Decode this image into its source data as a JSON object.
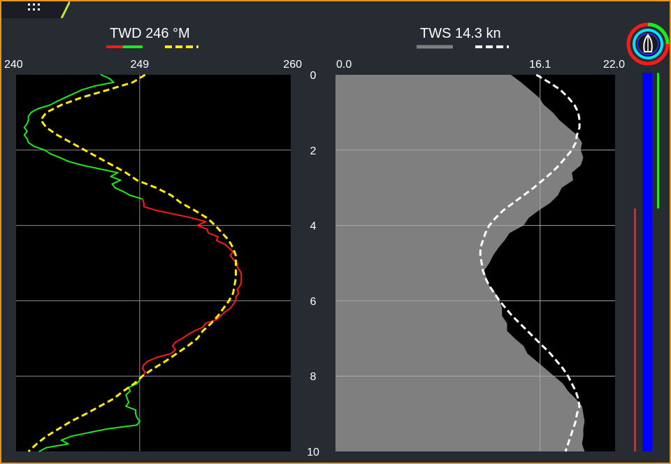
{
  "title_twd": "TWD 246 °M",
  "title_tws": "TWS 14.3 kn",
  "colors": {
    "frame": "#e8951c",
    "background": "#272c33",
    "plot_background": "#000000",
    "twd_port": "#ff1a1a",
    "twd_starboard": "#1ee81e",
    "twd_average": "#ffee00",
    "tws_fill": "#7f7f7f",
    "tws_average": "#ffffff",
    "bar_blue": "#0000ff"
  },
  "icons": {
    "menu": "grid-menu-icon",
    "compass": "sail-compass-icon"
  },
  "chart_data": [
    {
      "type": "line",
      "title": "TWD 246 °M",
      "orientation": "vertical-time",
      "xlim": [
        240,
        260
      ],
      "x_ticks": [
        "240",
        "249",
        "260"
      ],
      "ylim": [
        0,
        10
      ],
      "y_ticks": [
        "0",
        "2",
        "4",
        "6",
        "8",
        "10"
      ],
      "grid": true,
      "legend": "top",
      "series": [
        {
          "key": "twd_raw",
          "style": "solid",
          "colors": [
            "#ff1a1a",
            "#1ee81e"
          ],
          "split_value": 249,
          "points": [
            [
              0.0,
              246.2
            ],
            [
              0.1,
              246.8
            ],
            [
              0.2,
              247.1
            ],
            [
              0.3,
              245.7
            ],
            [
              0.4,
              244.8
            ],
            [
              0.5,
              244.2
            ],
            [
              0.6,
              243.6
            ],
            [
              0.7,
              243.0
            ],
            [
              0.8,
              242.5
            ],
            [
              0.9,
              241.6
            ],
            [
              1.0,
              241.1
            ],
            [
              1.1,
              240.9
            ],
            [
              1.2,
              240.9
            ],
            [
              1.3,
              240.8
            ],
            [
              1.4,
              240.6
            ],
            [
              1.5,
              240.8
            ],
            [
              1.6,
              240.6
            ],
            [
              1.7,
              240.8
            ],
            [
              1.8,
              240.9
            ],
            [
              1.9,
              241.3
            ],
            [
              2.0,
              242.1
            ],
            [
              2.1,
              242.5
            ],
            [
              2.2,
              243.2
            ],
            [
              2.3,
              243.8
            ],
            [
              2.4,
              244.8
            ],
            [
              2.5,
              246.1
            ],
            [
              2.6,
              247.4
            ],
            [
              2.7,
              246.9
            ],
            [
              2.8,
              247.6
            ],
            [
              2.9,
              247.0
            ],
            [
              3.0,
              247.2
            ],
            [
              3.1,
              247.8
            ],
            [
              3.2,
              248.3
            ],
            [
              3.3,
              249.2
            ],
            [
              3.4,
              249.3
            ],
            [
              3.5,
              249.3
            ],
            [
              3.6,
              250.2
            ],
            [
              3.7,
              251.5
            ],
            [
              3.8,
              252.8
            ],
            [
              3.9,
              253.8
            ],
            [
              4.0,
              253.2
            ],
            [
              4.1,
              253.9
            ],
            [
              4.2,
              254.0
            ],
            [
              4.3,
              254.7
            ],
            [
              4.4,
              254.6
            ],
            [
              4.5,
              255.2
            ],
            [
              4.6,
              255.5
            ],
            [
              4.7,
              255.8
            ],
            [
              4.8,
              255.6
            ],
            [
              4.9,
              255.8
            ],
            [
              5.0,
              256.1
            ],
            [
              5.1,
              256.1
            ],
            [
              5.2,
              256.3
            ],
            [
              5.3,
              256.4
            ],
            [
              5.4,
              256.4
            ],
            [
              5.5,
              256.4
            ],
            [
              5.6,
              256.3
            ],
            [
              5.7,
              256.1
            ],
            [
              5.8,
              256.2
            ],
            [
              5.9,
              256.0
            ],
            [
              6.0,
              256.0
            ],
            [
              6.1,
              255.8
            ],
            [
              6.2,
              255.6
            ],
            [
              6.3,
              255.2
            ],
            [
              6.4,
              254.9
            ],
            [
              6.5,
              254.6
            ],
            [
              6.6,
              253.8
            ],
            [
              6.7,
              253.6
            ],
            [
              6.8,
              253.0
            ],
            [
              6.9,
              252.5
            ],
            [
              7.0,
              252.1
            ],
            [
              7.1,
              251.6
            ],
            [
              7.2,
              251.4
            ],
            [
              7.3,
              251.6
            ],
            [
              7.4,
              251.3
            ],
            [
              7.5,
              250.3
            ],
            [
              7.6,
              249.6
            ],
            [
              7.7,
              249.3
            ],
            [
              7.8,
              249.2
            ],
            [
              7.9,
              249.4
            ],
            [
              8.0,
              249.2
            ],
            [
              8.1,
              249.0
            ],
            [
              8.2,
              248.8
            ],
            [
              8.3,
              248.2
            ],
            [
              8.4,
              248.3
            ],
            [
              8.5,
              248.0
            ],
            [
              8.6,
              248.1
            ],
            [
              8.7,
              248.2
            ],
            [
              8.8,
              248.0
            ],
            [
              8.9,
              248.7
            ],
            [
              9.0,
              248.7
            ],
            [
              9.1,
              248.8
            ],
            [
              9.2,
              249.0
            ],
            [
              9.3,
              248.8
            ],
            [
              9.4,
              246.7
            ],
            [
              9.5,
              245.3
            ],
            [
              9.6,
              244.0
            ],
            [
              9.7,
              243.3
            ],
            [
              9.8,
              243.8
            ],
            [
              9.9,
              242.2
            ],
            [
              10.0,
              241.7
            ]
          ]
        },
        {
          "key": "twd_average",
          "style": "dashed",
          "color": "#ffee00",
          "points": [
            [
              0.0,
              249.4
            ],
            [
              0.2,
              248.5
            ],
            [
              0.4,
              246.7
            ],
            [
              0.6,
              244.8
            ],
            [
              0.8,
              243.3
            ],
            [
              1.0,
              242.2
            ],
            [
              1.2,
              241.8
            ],
            [
              1.4,
              242.2
            ],
            [
              1.6,
              243.0
            ],
            [
              1.8,
              244.0
            ],
            [
              2.0,
              245.0
            ],
            [
              2.2,
              246.0
            ],
            [
              2.4,
              247.0
            ],
            [
              2.6,
              248.0
            ],
            [
              2.8,
              248.8
            ],
            [
              3.0,
              250.2
            ],
            [
              3.2,
              251.3
            ],
            [
              3.4,
              252.0
            ],
            [
              3.6,
              253.0
            ],
            [
              3.8,
              253.9
            ],
            [
              4.0,
              254.5
            ],
            [
              4.2,
              255.0
            ],
            [
              4.4,
              255.5
            ],
            [
              4.6,
              255.8
            ],
            [
              4.8,
              256.0
            ],
            [
              5.0,
              256.0
            ],
            [
              5.2,
              256.0
            ],
            [
              5.4,
              256.0
            ],
            [
              5.6,
              255.9
            ],
            [
              5.8,
              255.8
            ],
            [
              6.0,
              255.5
            ],
            [
              6.2,
              255.1
            ],
            [
              6.4,
              254.7
            ],
            [
              6.6,
              254.2
            ],
            [
              6.8,
              253.6
            ],
            [
              7.0,
              253.2
            ],
            [
              7.2,
              252.5
            ],
            [
              7.4,
              251.7
            ],
            [
              7.6,
              250.9
            ],
            [
              7.8,
              250.0
            ],
            [
              8.0,
              249.2
            ],
            [
              8.2,
              248.6
            ],
            [
              8.4,
              247.8
            ],
            [
              8.6,
              247.1
            ],
            [
              8.8,
              246.1
            ],
            [
              9.0,
              245.1
            ],
            [
              9.2,
              244.0
            ],
            [
              9.4,
              243.1
            ],
            [
              9.6,
              242.2
            ],
            [
              9.8,
              241.5
            ],
            [
              10.0,
              240.9
            ]
          ]
        }
      ]
    },
    {
      "type": "area",
      "title": "TWS 14.3 kn",
      "orientation": "vertical-time",
      "xlim": [
        0.0,
        22.0
      ],
      "x_ticks": [
        "0.0",
        "16.1",
        "22.0"
      ],
      "ylim": [
        0,
        10
      ],
      "y_ticks": [
        "0",
        "2",
        "4",
        "6",
        "8",
        "10"
      ],
      "grid": true,
      "legend": "top",
      "series": [
        {
          "key": "tws_raw",
          "style": "filled",
          "color": "#7f7f7f",
          "points": [
            [
              0.0,
              13.8
            ],
            [
              0.2,
              14.6
            ],
            [
              0.4,
              15.3
            ],
            [
              0.6,
              16.0
            ],
            [
              0.8,
              16.4
            ],
            [
              1.0,
              17.1
            ],
            [
              1.2,
              17.6
            ],
            [
              1.4,
              18.3
            ],
            [
              1.6,
              19.0
            ],
            [
              1.8,
              19.4
            ],
            [
              2.0,
              19.3
            ],
            [
              2.2,
              19.5
            ],
            [
              2.4,
              19.3
            ],
            [
              2.6,
              18.6
            ],
            [
              2.8,
              18.7
            ],
            [
              3.0,
              17.8
            ],
            [
              3.2,
              17.5
            ],
            [
              3.4,
              16.9
            ],
            [
              3.6,
              16.0
            ],
            [
              3.8,
              15.2
            ],
            [
              4.0,
              14.8
            ],
            [
              4.2,
              13.7
            ],
            [
              4.4,
              13.3
            ],
            [
              4.6,
              12.8
            ],
            [
              4.8,
              12.4
            ],
            [
              5.0,
              12.1
            ],
            [
              5.2,
              11.7
            ],
            [
              5.4,
              11.9
            ],
            [
              5.6,
              12.1
            ],
            [
              5.8,
              12.6
            ],
            [
              6.0,
              12.9
            ],
            [
              6.2,
              13.1
            ],
            [
              6.4,
              13.1
            ],
            [
              6.6,
              13.5
            ],
            [
              6.8,
              13.5
            ],
            [
              7.0,
              14.1
            ],
            [
              7.2,
              14.8
            ],
            [
              7.4,
              15.1
            ],
            [
              7.6,
              15.8
            ],
            [
              7.8,
              16.5
            ],
            [
              8.0,
              17.2
            ],
            [
              8.2,
              17.9
            ],
            [
              8.4,
              18.3
            ],
            [
              8.6,
              18.9
            ],
            [
              8.8,
              19.4
            ],
            [
              9.0,
              19.5
            ],
            [
              9.2,
              19.6
            ],
            [
              9.4,
              19.5
            ],
            [
              9.6,
              19.5
            ],
            [
              9.8,
              19.4
            ],
            [
              10.0,
              19.6
            ]
          ]
        },
        {
          "key": "tws_average",
          "style": "dashed",
          "color": "#ffffff",
          "points": [
            [
              0.0,
              15.8
            ],
            [
              0.2,
              16.8
            ],
            [
              0.4,
              17.7
            ],
            [
              0.6,
              18.3
            ],
            [
              0.8,
              18.8
            ],
            [
              1.0,
              19.1
            ],
            [
              1.2,
              19.2
            ],
            [
              1.4,
              19.2
            ],
            [
              1.6,
              19.0
            ],
            [
              1.8,
              18.9
            ],
            [
              2.0,
              18.6
            ],
            [
              2.2,
              18.1
            ],
            [
              2.4,
              17.6
            ],
            [
              2.6,
              17.0
            ],
            [
              2.8,
              16.3
            ],
            [
              3.0,
              15.6
            ],
            [
              3.2,
              14.8
            ],
            [
              3.4,
              14.0
            ],
            [
              3.6,
              13.2
            ],
            [
              3.8,
              12.6
            ],
            [
              4.0,
              12.1
            ],
            [
              4.2,
              11.8
            ],
            [
              4.4,
              11.6
            ],
            [
              4.6,
              11.4
            ],
            [
              4.8,
              11.4
            ],
            [
              5.0,
              11.5
            ],
            [
              5.2,
              11.6
            ],
            [
              5.4,
              11.8
            ],
            [
              5.6,
              12.1
            ],
            [
              5.8,
              12.5
            ],
            [
              6.0,
              12.9
            ],
            [
              6.2,
              13.4
            ],
            [
              6.4,
              13.9
            ],
            [
              6.6,
              14.5
            ],
            [
              6.8,
              15.1
            ],
            [
              7.0,
              15.7
            ],
            [
              7.2,
              16.3
            ],
            [
              7.4,
              16.9
            ],
            [
              7.6,
              17.4
            ],
            [
              7.8,
              17.9
            ],
            [
              8.0,
              18.3
            ],
            [
              8.2,
              18.6
            ],
            [
              8.4,
              18.9
            ],
            [
              8.6,
              19.1
            ],
            [
              8.8,
              19.2
            ],
            [
              9.0,
              19.0
            ],
            [
              9.2,
              18.9
            ],
            [
              9.4,
              18.7
            ],
            [
              9.6,
              18.5
            ],
            [
              9.8,
              18.3
            ],
            [
              10.0,
              18.1
            ]
          ]
        }
      ]
    }
  ],
  "side_bars": [
    {
      "name": "port-bar",
      "color": "#ff1a1a",
      "y_range": [
        3.55,
        10.0
      ]
    },
    {
      "name": "history-bar",
      "color": "#0000ff",
      "y_range": [
        -0.05,
        10.0
      ]
    },
    {
      "name": "starboard-bar",
      "color": "#1ee81e",
      "y_range": [
        -0.05,
        3.55
      ]
    }
  ]
}
